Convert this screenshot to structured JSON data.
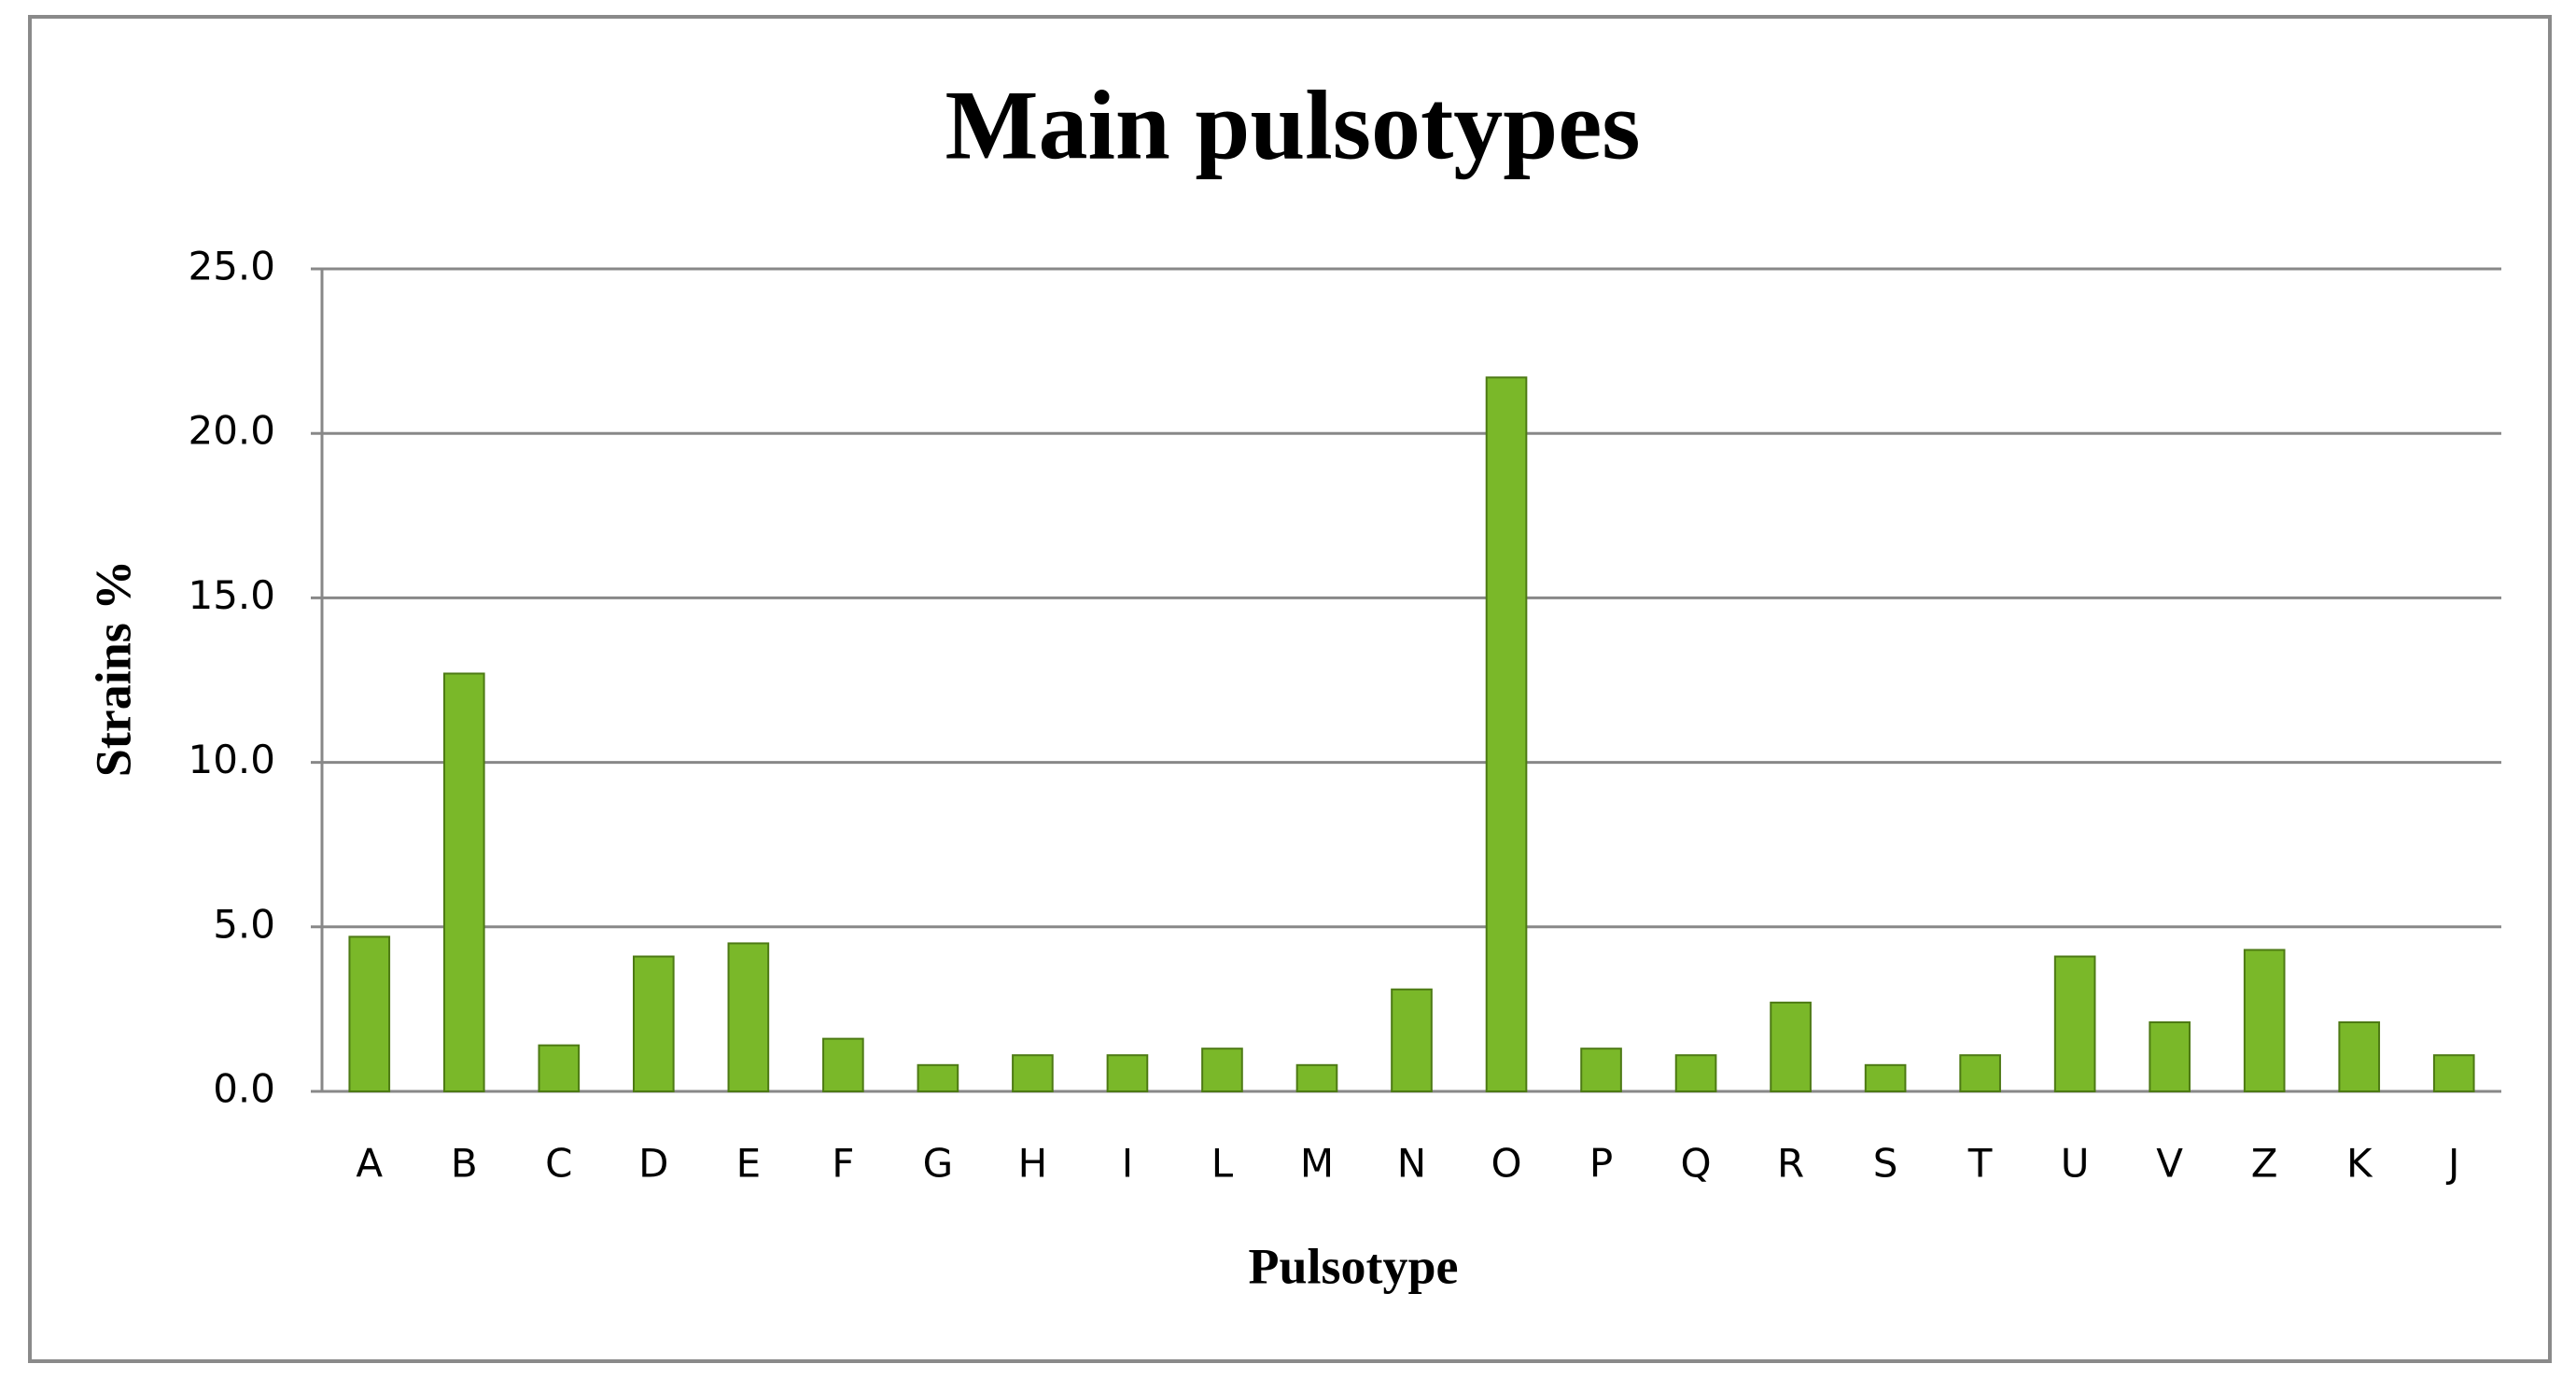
{
  "chart_data": {
    "type": "bar",
    "title": "Main pulsotypes",
    "x_label": "Pulsotype",
    "y_label": "Strains %",
    "categories": [
      "A",
      "B",
      "C",
      "D",
      "E",
      "F",
      "G",
      "H",
      "I",
      "L",
      "M",
      "N",
      "O",
      "P",
      "Q",
      "R",
      "S",
      "T",
      "U",
      "V",
      "Z",
      "K",
      "J"
    ],
    "values": [
      4.7,
      12.7,
      1.4,
      4.1,
      4.5,
      1.6,
      0.8,
      1.1,
      1.1,
      1.3,
      0.8,
      3.1,
      21.7,
      1.3,
      1.1,
      2.7,
      0.8,
      1.1,
      4.1,
      2.1,
      4.3,
      2.1,
      1.1
    ],
    "color": "#7ab829",
    "ylim": [
      0,
      25
    ],
    "yticks": [
      {
        "value": 0,
        "label": "0.0"
      },
      {
        "value": 5,
        "label": "5.0"
      },
      {
        "value": 10,
        "label": "10.0"
      },
      {
        "value": 15,
        "label": "15.0"
      },
      {
        "value": 20,
        "label": "20.0"
      },
      {
        "value": 25,
        "label": "25.0"
      }
    ],
    "grid": true
  }
}
